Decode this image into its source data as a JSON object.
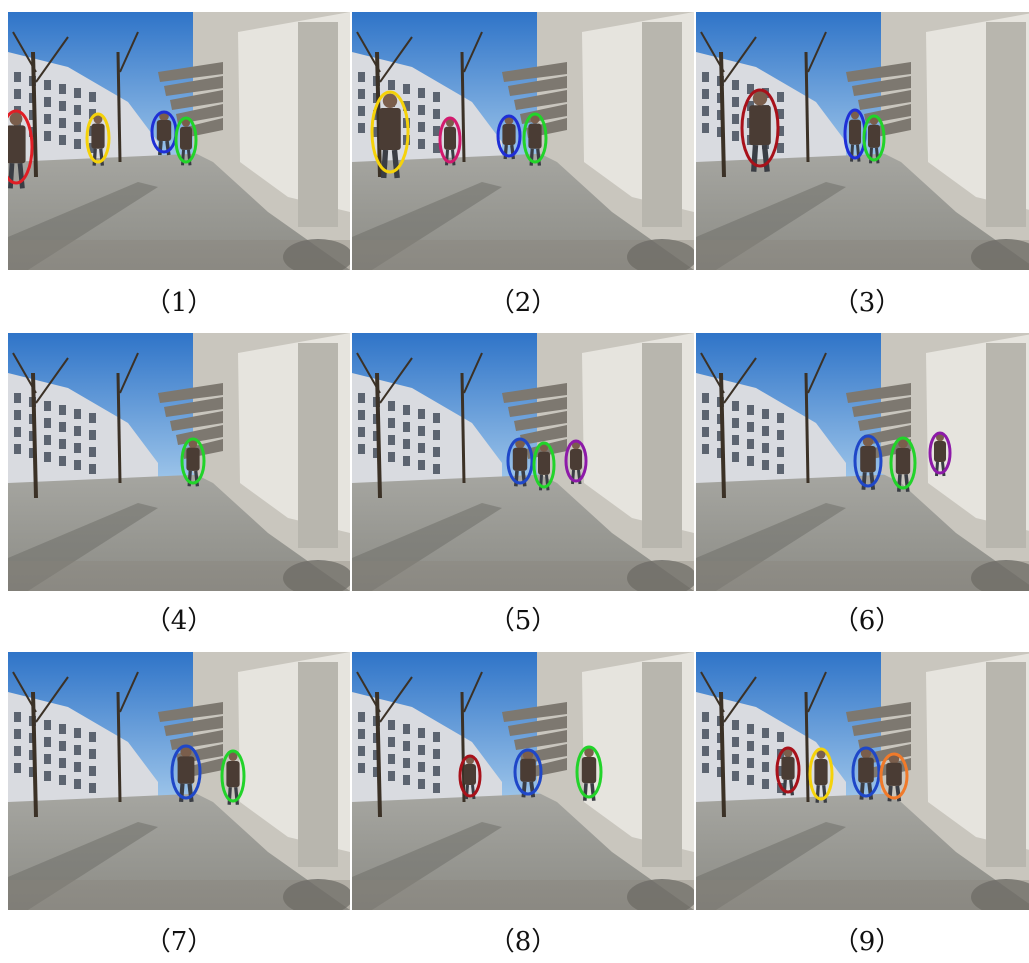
{
  "panels": [
    {
      "label": "（1）",
      "markers": [
        {
          "color": "#e01e25"
        },
        {
          "color": "#f5d20a"
        },
        {
          "color": "#1f2fd6"
        },
        {
          "color": "#22d32a"
        }
      ]
    },
    {
      "label": "（2）",
      "markers": [
        {
          "color": "#f5d20a"
        },
        {
          "color": "#d21a6e"
        },
        {
          "color": "#1f2fd6"
        },
        {
          "color": "#22d32a"
        }
      ]
    },
    {
      "label": "（3）",
      "markers": [
        {
          "color": "#a8111a"
        },
        {
          "color": "#1f2fd6"
        },
        {
          "color": "#22d32a"
        }
      ]
    },
    {
      "label": "（4）",
      "markers": [
        {
          "color": "#22d32a"
        }
      ]
    },
    {
      "label": "（5）",
      "markers": [
        {
          "color": "#1f47c8"
        },
        {
          "color": "#22d32a"
        },
        {
          "color": "#8d1aa8"
        }
      ]
    },
    {
      "label": "（6）",
      "markers": [
        {
          "color": "#1f47c8"
        },
        {
          "color": "#22d32a"
        },
        {
          "color": "#8d1aa8"
        }
      ]
    },
    {
      "label": "（7）",
      "markers": [
        {
          "color": "#1f47c8"
        },
        {
          "color": "#22d32a"
        }
      ]
    },
    {
      "label": "（8）",
      "markers": [
        {
          "color": "#a8111a"
        },
        {
          "color": "#1f47c8"
        },
        {
          "color": "#22d32a"
        }
      ]
    },
    {
      "label": "（9）",
      "markers": [
        {
          "color": "#a8111a"
        },
        {
          "color": "#f5d20a"
        },
        {
          "color": "#1f47c8"
        },
        {
          "color": "#f07a2a"
        }
      ]
    }
  ]
}
